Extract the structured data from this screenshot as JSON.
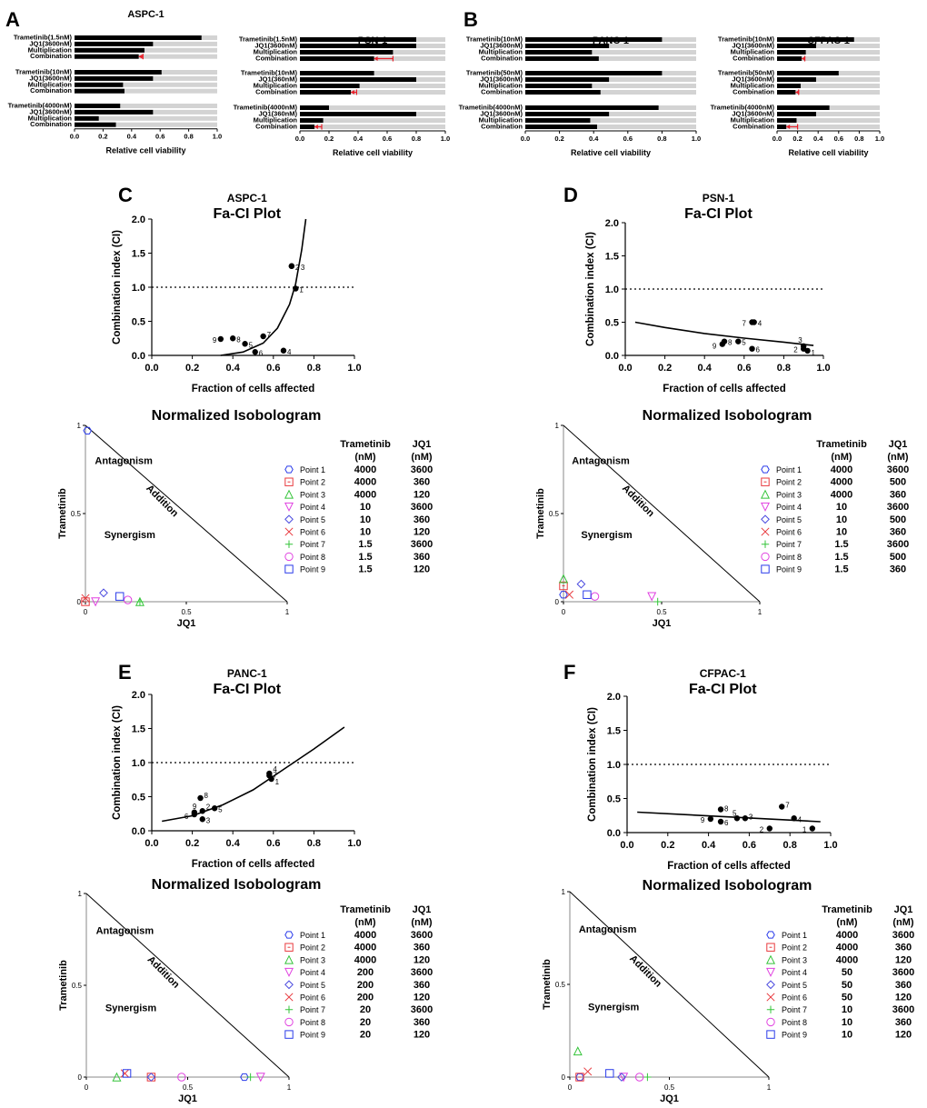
{
  "panel_labels": [
    "A",
    "B",
    "C",
    "D",
    "E",
    "F"
  ],
  "chart_data": [
    {
      "type": "bar",
      "panel": "A",
      "title": "ASPC-1",
      "xlabel": "Relative cell viability",
      "xlim": [
        0,
        1
      ],
      "xticks": [
        "0.0",
        "0.2",
        "0.4",
        "0.6",
        "0.8",
        "1.0"
      ],
      "categories": [
        "Trametinib(1.5nM)",
        "JQ1(3600nM)",
        "Multiplication",
        "Combination",
        "Trametinib(10nM)",
        "JQ1(3600nM)",
        "Multiplication",
        "Combination",
        "Trametinib(4000nM)",
        "JQ1(3600nM)",
        "Multiplication",
        "Combination"
      ],
      "values": [
        0.89,
        0.55,
        0.49,
        0.45,
        0.61,
        0.55,
        0.34,
        0.35,
        0.32,
        0.55,
        0.17,
        0.29
      ],
      "error_bars": [
        {
          "index": 3,
          "low": 0.45,
          "high": 0.48
        }
      ]
    },
    {
      "type": "bar",
      "panel": "A",
      "title": "PSN-1",
      "xlabel": "Relative cell viability",
      "xlim": [
        0,
        1
      ],
      "xticks": [
        "0.0",
        "0.2",
        "0.4",
        "0.6",
        "0.8",
        "1.0"
      ],
      "categories": [
        "Trametinib(1.5nM)",
        "JQ1(3600nM)",
        "Multiplication",
        "Combination",
        "Trametinib(10nM)",
        "JQ1(360nM)",
        "Multiplication",
        "Combination",
        "Trametinib(4000nM)",
        "JQ1(360nM)",
        "Multiplication",
        "Combination"
      ],
      "values": [
        0.8,
        0.8,
        0.64,
        0.51,
        0.51,
        0.8,
        0.41,
        0.35,
        0.2,
        0.8,
        0.16,
        0.1
      ],
      "error_bars": [
        {
          "index": 3,
          "low": 0.51,
          "high": 0.64
        },
        {
          "index": 7,
          "low": 0.35,
          "high": 0.39
        },
        {
          "index": 11,
          "low": 0.1,
          "high": 0.15
        }
      ]
    },
    {
      "type": "bar",
      "panel": "B",
      "title": "PANC-1",
      "xlabel": "Relative cell viability",
      "xlim": [
        0,
        1
      ],
      "xticks": [
        "0.0",
        "0.2",
        "0.4",
        "0.6",
        "0.8",
        "1.0"
      ],
      "categories": [
        "Trametinib(10nM)",
        "JQ1(3600nM)",
        "Multiplication",
        "Combination",
        "Trametinib(50nM)",
        "JQ1(3600nM)",
        "Multiplication",
        "Combination",
        "Trametinib(4000nM)",
        "JQ1(3600nM)",
        "Multiplication",
        "Combination"
      ],
      "values": [
        0.8,
        0.49,
        0.39,
        0.43,
        0.8,
        0.49,
        0.39,
        0.44,
        0.78,
        0.49,
        0.38,
        0.42
      ],
      "error_bars": []
    },
    {
      "type": "bar",
      "panel": "B",
      "title": "CFPAC-1",
      "xlabel": "Relative cell viability",
      "xlim": [
        0,
        1
      ],
      "xticks": [
        "0.0",
        "0.2",
        "0.4",
        "0.6",
        "0.8",
        "1.0"
      ],
      "categories": [
        "Trametinib(10nM)",
        "JQ1(3600nM)",
        "Multiplication",
        "Combination",
        "Trametinib(50nM)",
        "JQ1(3600nM)",
        "Multiplication",
        "Combination",
        "Trametinib(4000nM)",
        "JQ1(3600nM)",
        "Multiplication",
        "Combination"
      ],
      "values": [
        0.75,
        0.38,
        0.28,
        0.24,
        0.6,
        0.38,
        0.23,
        0.18,
        0.51,
        0.38,
        0.19,
        0.09
      ],
      "error_bars": [
        {
          "index": 3,
          "low": 0.24,
          "high": 0.27
        },
        {
          "index": 7,
          "low": 0.18,
          "high": 0.21
        },
        {
          "index": 11,
          "low": 0.09,
          "high": 0.2
        }
      ]
    },
    {
      "type": "scatter",
      "panel": "C",
      "title": "ASPC-1",
      "subtitle": "Fa-CI Plot",
      "xlabel": "Fraction of cells affected",
      "ylabel": "Combination index (CI)",
      "xlim": [
        0,
        1
      ],
      "ylim": [
        0,
        2
      ],
      "xticks": [
        "0.0",
        "0.2",
        "0.4",
        "0.6",
        "0.8",
        "1.0"
      ],
      "yticks": [
        "0.0",
        "0.5",
        "1.0",
        "1.5",
        "2.0"
      ],
      "reference_line": 1.0,
      "points": [
        {
          "label": "1",
          "x": 0.71,
          "y": 0.98
        },
        {
          "label": "2",
          "x": 0.69,
          "y": 1.31
        },
        {
          "label": "3",
          "x": 0.69,
          "y": 1.31
        },
        {
          "label": "4",
          "x": 0.65,
          "y": 0.07
        },
        {
          "label": "5",
          "x": 0.46,
          "y": 0.17
        },
        {
          "label": "6",
          "x": 0.51,
          "y": 0.05
        },
        {
          "label": "7",
          "x": 0.55,
          "y": 0.28
        },
        {
          "label": "8",
          "x": 0.4,
          "y": 0.25
        },
        {
          "label": "9",
          "x": 0.34,
          "y": 0.24
        }
      ],
      "curve": {
        "x": [
          0.34,
          0.45,
          0.55,
          0.62,
          0.68,
          0.71,
          0.74,
          0.76
        ],
        "y": [
          0.0,
          0.05,
          0.18,
          0.4,
          0.75,
          1.05,
          1.55,
          2.0
        ]
      }
    },
    {
      "type": "scatter",
      "panel": "D",
      "title": "PSN-1",
      "subtitle": "Fa-CI Plot",
      "xlabel": "Fraction of cells affected",
      "ylabel": "Combination index (CI)",
      "xlim": [
        0,
        1
      ],
      "ylim": [
        0,
        2
      ],
      "xticks": [
        "0.0",
        "0.2",
        "0.4",
        "0.6",
        "0.8",
        "1.0"
      ],
      "yticks": [
        "0.0",
        "0.5",
        "1.0",
        "1.5",
        "2.0"
      ],
      "reference_line": 1.0,
      "points": [
        {
          "label": "1",
          "x": 0.92,
          "y": 0.07
        },
        {
          "label": "2",
          "x": 0.9,
          "y": 0.1
        },
        {
          "label": "3",
          "x": 0.9,
          "y": 0.14
        },
        {
          "label": "4",
          "x": 0.65,
          "y": 0.5
        },
        {
          "label": "5",
          "x": 0.57,
          "y": 0.21
        },
        {
          "label": "6",
          "x": 0.64,
          "y": 0.1
        },
        {
          "label": "7",
          "x": 0.64,
          "y": 0.5
        },
        {
          "label": "8",
          "x": 0.5,
          "y": 0.21
        },
        {
          "label": "9",
          "x": 0.49,
          "y": 0.17
        }
      ],
      "curve": {
        "x": [
          0.05,
          0.2,
          0.4,
          0.6,
          0.8,
          0.95
        ],
        "y": [
          0.5,
          0.42,
          0.33,
          0.26,
          0.2,
          0.15
        ]
      }
    },
    {
      "type": "scatter",
      "panel": "E",
      "title": "PANC-1",
      "subtitle": "Fa-CI Plot",
      "xlabel": "Fraction of cells affected",
      "ylabel": "Combination index (CI)",
      "xlim": [
        0,
        1
      ],
      "ylim": [
        0,
        2
      ],
      "xticks": [
        "0.0",
        "0.2",
        "0.4",
        "0.6",
        "0.8",
        "1.0"
      ],
      "yticks": [
        "0.0",
        "0.5",
        "1.0",
        "1.5",
        "2.0"
      ],
      "reference_line": 1.0,
      "points": [
        {
          "label": "1",
          "x": 0.59,
          "y": 0.76
        },
        {
          "label": "2",
          "x": 0.25,
          "y": 0.29
        },
        {
          "label": "3",
          "x": 0.25,
          "y": 0.17
        },
        {
          "label": "4",
          "x": 0.58,
          "y": 0.84
        },
        {
          "label": "5",
          "x": 0.31,
          "y": 0.33
        },
        {
          "label": "6",
          "x": 0.21,
          "y": 0.24
        },
        {
          "label": "7",
          "x": 0.58,
          "y": 0.81
        },
        {
          "label": "8",
          "x": 0.24,
          "y": 0.48
        },
        {
          "label": "9",
          "x": 0.21,
          "y": 0.27
        }
      ],
      "curve": {
        "x": [
          0.05,
          0.2,
          0.35,
          0.5,
          0.65,
          0.8,
          0.95
        ],
        "y": [
          0.14,
          0.22,
          0.38,
          0.6,
          0.9,
          1.2,
          1.52
        ]
      }
    },
    {
      "type": "scatter",
      "panel": "F",
      "title": "CFPAC-1",
      "subtitle": "Fa-CI Plot",
      "xlabel": "Fraction of cells affected",
      "ylabel": "Combination index (CI)",
      "xlim": [
        0,
        1
      ],
      "ylim": [
        0,
        2
      ],
      "xticks": [
        "0.0",
        "0.2",
        "0.4",
        "0.6",
        "0.8",
        "1.0"
      ],
      "yticks": [
        "0.0",
        "0.5",
        "1.0",
        "1.5",
        "2.0"
      ],
      "reference_line": 1.0,
      "points": [
        {
          "label": "1",
          "x": 0.91,
          "y": 0.06
        },
        {
          "label": "2",
          "x": 0.7,
          "y": 0.06
        },
        {
          "label": "3",
          "x": 0.58,
          "y": 0.21
        },
        {
          "label": "4",
          "x": 0.82,
          "y": 0.21
        },
        {
          "label": "5",
          "x": 0.54,
          "y": 0.21
        },
        {
          "label": "6",
          "x": 0.46,
          "y": 0.16
        },
        {
          "label": "7",
          "x": 0.76,
          "y": 0.38
        },
        {
          "label": "8",
          "x": 0.46,
          "y": 0.34
        },
        {
          "label": "9",
          "x": 0.41,
          "y": 0.2
        }
      ],
      "curve": {
        "x": [
          0.05,
          0.95
        ],
        "y": [
          0.3,
          0.16
        ]
      }
    },
    {
      "type": "scatter",
      "panel": "C",
      "title": "Normalized Isobologram",
      "xlabel": "JQ1",
      "ylabel": "Trametinib",
      "xlim": [
        0,
        1
      ],
      "ylim": [
        0,
        1
      ],
      "xticks": [
        "0",
        "0.5",
        "1"
      ],
      "yticks": [
        "0",
        "0.5",
        "1"
      ],
      "zones": [
        "Antagonism",
        "Synergism",
        "Addition"
      ],
      "table_header": [
        "Trametinib",
        "(nM)",
        "JQ1",
        "(nM)"
      ],
      "points": [
        {
          "label": "Point 1",
          "trametinib_nM": "4000",
          "jq1_nM": "3600",
          "x": 0.01,
          "y": 0.97
        },
        {
          "label": "Point 2",
          "trametinib_nM": "4000",
          "jq1_nM": "360",
          "x": 0.0,
          "y": 0.0
        },
        {
          "label": "Point 3",
          "trametinib_nM": "4000",
          "jq1_nM": "120",
          "x": 0.27,
          "y": 0.0
        },
        {
          "label": "Point 4",
          "trametinib_nM": "10",
          "jq1_nM": "3600",
          "x": 0.05,
          "y": 0.0
        },
        {
          "label": "Point 5",
          "trametinib_nM": "10",
          "jq1_nM": "360",
          "x": 0.09,
          "y": 0.05
        },
        {
          "label": "Point 6",
          "trametinib_nM": "10",
          "jq1_nM": "120",
          "x": 0.0,
          "y": 0.02
        },
        {
          "label": "Point 7",
          "trametinib_nM": "1.5",
          "jq1_nM": "3600",
          "x": 0.27,
          "y": 0.0
        },
        {
          "label": "Point 8",
          "trametinib_nM": "1.5",
          "jq1_nM": "360",
          "x": 0.21,
          "y": 0.01
        },
        {
          "label": "Point 9",
          "trametinib_nM": "1.5",
          "jq1_nM": "120",
          "x": 0.17,
          "y": 0.03
        }
      ]
    },
    {
      "type": "scatter",
      "panel": "D",
      "title": "Normalized Isobologram",
      "xlabel": "JQ1",
      "ylabel": "Trametinib",
      "xlim": [
        0,
        1
      ],
      "ylim": [
        0,
        1
      ],
      "xticks": [
        "0",
        "0.5",
        "1"
      ],
      "yticks": [
        "0",
        "0.5",
        "1"
      ],
      "zones": [
        "Antagonism",
        "Synergism",
        "Addition"
      ],
      "table_header": [
        "Trametinib",
        "(nM)",
        "JQ1",
        "(nM)"
      ],
      "points": [
        {
          "label": "Point 1",
          "trametinib_nM": "4000",
          "jq1_nM": "3600",
          "x": 0.0,
          "y": 0.04
        },
        {
          "label": "Point 2",
          "trametinib_nM": "4000",
          "jq1_nM": "500",
          "x": 0.0,
          "y": 0.09
        },
        {
          "label": "Point 3",
          "trametinib_nM": "4000",
          "jq1_nM": "360",
          "x": 0.0,
          "y": 0.13
        },
        {
          "label": "Point 4",
          "trametinib_nM": "10",
          "jq1_nM": "3600",
          "x": 0.45,
          "y": 0.03
        },
        {
          "label": "Point 5",
          "trametinib_nM": "10",
          "jq1_nM": "500",
          "x": 0.09,
          "y": 0.1
        },
        {
          "label": "Point 6",
          "trametinib_nM": "10",
          "jq1_nM": "360",
          "x": 0.03,
          "y": 0.04
        },
        {
          "label": "Point 7",
          "trametinib_nM": "1.5",
          "jq1_nM": "3600",
          "x": 0.48,
          "y": 0.0
        },
        {
          "label": "Point 8",
          "trametinib_nM": "1.5",
          "jq1_nM": "500",
          "x": 0.16,
          "y": 0.03
        },
        {
          "label": "Point 9",
          "trametinib_nM": "1.5",
          "jq1_nM": "360",
          "x": 0.12,
          "y": 0.04
        }
      ]
    },
    {
      "type": "scatter",
      "panel": "E",
      "title": "Normalized Isobologram",
      "xlabel": "JQ1",
      "ylabel": "Trametinib",
      "xlim": [
        0,
        1
      ],
      "ylim": [
        0,
        1
      ],
      "xticks": [
        "0",
        "0.5",
        "1"
      ],
      "yticks": [
        "0",
        "0.5",
        "1"
      ],
      "zones": [
        "Antagonism",
        "Synergism",
        "Addition"
      ],
      "table_header": [
        "Trametinib",
        "(nM)",
        "JQ1",
        "(nM)"
      ],
      "points": [
        {
          "label": "Point 1",
          "trametinib_nM": "4000",
          "jq1_nM": "3600",
          "x": 0.78,
          "y": 0.0
        },
        {
          "label": "Point 2",
          "trametinib_nM": "4000",
          "jq1_nM": "360",
          "x": 0.32,
          "y": 0.0
        },
        {
          "label": "Point 3",
          "trametinib_nM": "4000",
          "jq1_nM": "120",
          "x": 0.15,
          "y": 0.0
        },
        {
          "label": "Point 4",
          "trametinib_nM": "200",
          "jq1_nM": "3600",
          "x": 0.86,
          "y": 0.0
        },
        {
          "label": "Point 5",
          "trametinib_nM": "200",
          "jq1_nM": "360",
          "x": 0.32,
          "y": 0.0
        },
        {
          "label": "Point 6",
          "trametinib_nM": "200",
          "jq1_nM": "120",
          "x": 0.19,
          "y": 0.02
        },
        {
          "label": "Point 7",
          "trametinib_nM": "20",
          "jq1_nM": "3600",
          "x": 0.81,
          "y": 0.0
        },
        {
          "label": "Point 8",
          "trametinib_nM": "20",
          "jq1_nM": "360",
          "x": 0.47,
          "y": 0.0
        },
        {
          "label": "Point 9",
          "trametinib_nM": "20",
          "jq1_nM": "120",
          "x": 0.2,
          "y": 0.02
        }
      ]
    },
    {
      "type": "scatter",
      "panel": "F",
      "title": "Normalized Isobologram",
      "xlabel": "JQ1",
      "ylabel": "Trametinib",
      "xlim": [
        0,
        1
      ],
      "ylim": [
        0,
        1
      ],
      "xticks": [
        "0",
        "0.5",
        "1"
      ],
      "yticks": [
        "0",
        "0.5",
        "1"
      ],
      "zones": [
        "Antagonism",
        "Synergism",
        "Addition"
      ],
      "table_header": [
        "Trametinib",
        "(nM)",
        "JQ1",
        "(nM)"
      ],
      "points": [
        {
          "label": "Point 1",
          "trametinib_nM": "4000",
          "jq1_nM": "3600",
          "x": 0.05,
          "y": 0.0
        },
        {
          "label": "Point 2",
          "trametinib_nM": "4000",
          "jq1_nM": "360",
          "x": 0.05,
          "y": 0.0
        },
        {
          "label": "Point 3",
          "trametinib_nM": "4000",
          "jq1_nM": "120",
          "x": 0.04,
          "y": 0.14
        },
        {
          "label": "Point 4",
          "trametinib_nM": "50",
          "jq1_nM": "3600",
          "x": 0.27,
          "y": 0.0
        },
        {
          "label": "Point 5",
          "trametinib_nM": "50",
          "jq1_nM": "360",
          "x": 0.26,
          "y": 0.0
        },
        {
          "label": "Point 6",
          "trametinib_nM": "50",
          "jq1_nM": "120",
          "x": 0.09,
          "y": 0.03
        },
        {
          "label": "Point 7",
          "trametinib_nM": "10",
          "jq1_nM": "3600",
          "x": 0.39,
          "y": 0.0
        },
        {
          "label": "Point 8",
          "trametinib_nM": "10",
          "jq1_nM": "360",
          "x": 0.35,
          "y": 0.0
        },
        {
          "label": "Point 9",
          "trametinib_nM": "10",
          "jq1_nM": "120",
          "x": 0.2,
          "y": 0.02
        }
      ]
    }
  ],
  "marker_styles": [
    {
      "shape": "hexagon",
      "color": "#2A3BEA"
    },
    {
      "shape": "square-dot",
      "color": "#E8383C"
    },
    {
      "shape": "triangle",
      "color": "#35C43A"
    },
    {
      "shape": "triangle-down",
      "color": "#E040E0"
    },
    {
      "shape": "diamond",
      "color": "#4A4ADF"
    },
    {
      "shape": "x",
      "color": "#E8383C"
    },
    {
      "shape": "plus",
      "color": "#35C43A"
    },
    {
      "shape": "circle",
      "color": "#E040E0"
    },
    {
      "shape": "square",
      "color": "#2A3BEA"
    }
  ],
  "colors": {
    "bar": "#000000",
    "track": "#d3d3d3",
    "error": "#e8202a"
  }
}
